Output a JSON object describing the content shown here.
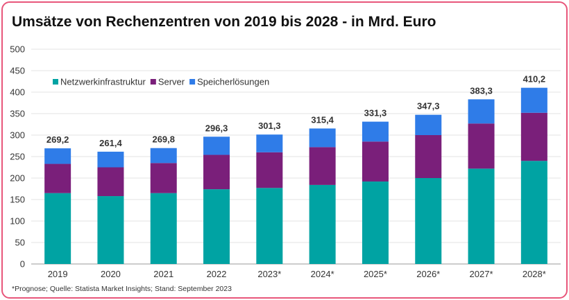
{
  "title": "Umsätze von Rechenzentren von 2019 bis 2028 - in Mrd. Euro",
  "footnote": "*Prognose; Quelle: Statista Market Insights; Stand: September 2023",
  "colors": {
    "border": "#e8557a"
  },
  "chart_data": {
    "type": "bar",
    "stacked": true,
    "categories": [
      "2019",
      "2020",
      "2021",
      "2022",
      "2023*",
      "2024*",
      "2025*",
      "2026*",
      "2027*",
      "2028*"
    ],
    "series": [
      {
        "name": "Netzwerkinfrastruktur",
        "color": "#00a3a3",
        "values": [
          165,
          158,
          165,
          174,
          177,
          184,
          192,
          200,
          222,
          240
        ]
      },
      {
        "name": "Server",
        "color": "#7a1f7a",
        "values": [
          68,
          67,
          70,
          80,
          83,
          88,
          93,
          100,
          105,
          112
        ]
      },
      {
        "name": "Speicherlösungen",
        "color": "#2f7ce8",
        "values": [
          36.2,
          36.4,
          34.8,
          42.3,
          41.3,
          43.4,
          46.3,
          47.3,
          56.3,
          58.2
        ]
      }
    ],
    "totals": [
      "269,2",
      "261,4",
      "269,8",
      "296,3",
      "301,3",
      "315,4",
      "331,3",
      "347,3",
      "383,3",
      "410,2"
    ],
    "yticks": [
      "0",
      "50",
      "100",
      "150",
      "200",
      "250",
      "300",
      "350",
      "400",
      "450",
      "500"
    ],
    "ylim": [
      0,
      500
    ],
    "grid": true,
    "legend_position": "top-left"
  }
}
